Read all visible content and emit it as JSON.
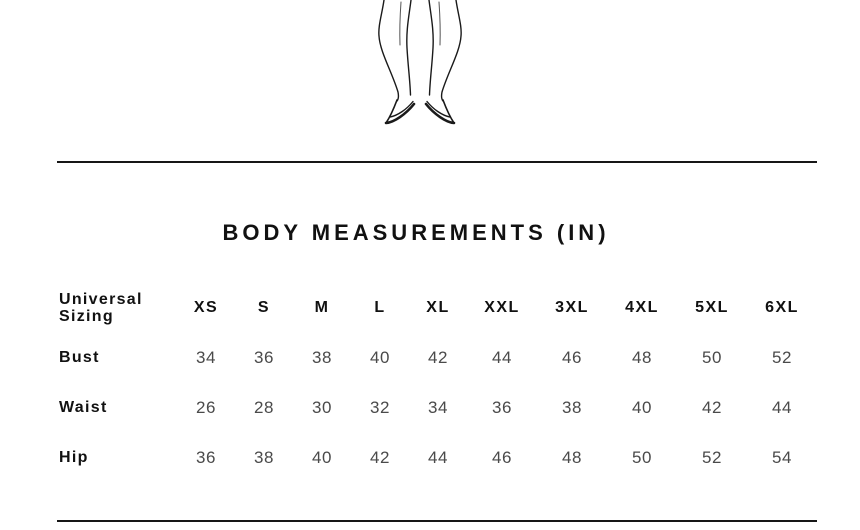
{
  "title": "BODY MEASUREMENTS (IN)",
  "figure": {
    "illustration": "fashion-figure-legs-with-pointed-heels"
  },
  "table": {
    "label_header": "Universal Sizing",
    "columns": [
      "XS",
      "S",
      "M",
      "L",
      "XL",
      "XXL",
      "3XL",
      "4XL",
      "5XL",
      "6XL"
    ],
    "rows": [
      {
        "label": "Bust",
        "values": [
          34,
          36,
          38,
          40,
          42,
          44,
          46,
          48,
          50,
          52
        ]
      },
      {
        "label": "Waist",
        "values": [
          26,
          28,
          30,
          32,
          34,
          36,
          38,
          40,
          42,
          44
        ]
      },
      {
        "label": "Hip",
        "values": [
          36,
          38,
          40,
          42,
          44,
          46,
          48,
          50,
          52,
          54
        ]
      }
    ]
  },
  "colors": {
    "heading_text": "#111111",
    "value_text": "#4a4a4a",
    "divider": "#161616",
    "background": "#ffffff",
    "illustration_stroke": "#1a1a1a"
  }
}
